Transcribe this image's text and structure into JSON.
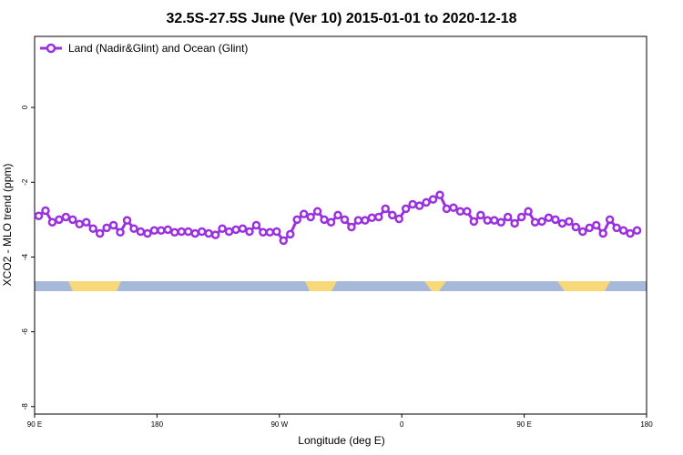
{
  "chart_data": {
    "type": "line",
    "title": "32.5S-27.5S June (Ver 10)   2015-01-01 to 2020-12-18",
    "x_label": "Longitude (deg E)",
    "y_label": "XCO2 - MLO trend (ppm)",
    "xlim": [
      90,
      540
    ],
    "ylim": [
      -8.2,
      1.9
    ],
    "xticks": [
      {
        "value": 90,
        "label": "90 E"
      },
      {
        "value": 180,
        "label": "180"
      },
      {
        "value": 270,
        "label": "90 W"
      },
      {
        "value": 360,
        "label": "0"
      },
      {
        "value": 450,
        "label": "90 E"
      },
      {
        "value": 540,
        "label": "180"
      }
    ],
    "yticks": [
      0,
      -2,
      -4,
      -6,
      -8
    ],
    "legend_position": "top-left",
    "x": [
      93,
      98,
      103,
      108,
      113,
      118,
      123,
      128,
      133,
      138,
      143,
      148,
      153,
      158,
      163,
      168,
      173,
      178,
      183,
      188,
      193,
      198,
      203,
      208,
      213,
      218,
      223,
      228,
      233,
      238,
      243,
      248,
      253,
      258,
      263,
      268,
      273,
      278,
      283,
      288,
      293,
      298,
      303,
      308,
      313,
      318,
      323,
      328,
      333,
      338,
      343,
      348,
      353,
      358,
      363,
      368,
      373,
      378,
      383,
      388,
      393,
      398,
      403,
      408,
      413,
      418,
      423,
      428,
      433,
      438,
      443,
      448,
      453,
      458,
      463,
      468,
      473,
      478,
      483,
      488,
      493,
      498,
      503,
      508,
      513,
      518,
      523,
      528,
      533
    ],
    "series": [
      {
        "name": "Land (Nadir&Glint) and Ocean (Glint)",
        "color": "#9b30e0",
        "values": [
          -2.9,
          -2.76,
          -3.07,
          -3.0,
          -2.93,
          -3.0,
          -3.12,
          -3.07,
          -3.24,
          -3.37,
          -3.22,
          -3.15,
          -3.34,
          -3.02,
          -3.24,
          -3.32,
          -3.37,
          -3.29,
          -3.29,
          -3.27,
          -3.34,
          -3.32,
          -3.32,
          -3.37,
          -3.32,
          -3.37,
          -3.41,
          -3.24,
          -3.32,
          -3.27,
          -3.24,
          -3.32,
          -3.15,
          -3.34,
          -3.34,
          -3.32,
          -3.56,
          -3.39,
          -3.0,
          -2.85,
          -2.93,
          -2.78,
          -3.0,
          -3.07,
          -2.88,
          -3.0,
          -3.2,
          -3.02,
          -3.02,
          -2.95,
          -2.93,
          -2.71,
          -2.88,
          -2.98,
          -2.71,
          -2.59,
          -2.63,
          -2.54,
          -2.46,
          -2.34,
          -2.71,
          -2.68,
          -2.78,
          -2.78,
          -3.05,
          -2.88,
          -3.02,
          -3.02,
          -3.07,
          -2.93,
          -3.1,
          -2.93,
          -2.78,
          -3.07,
          -3.05,
          -2.95,
          -3.0,
          -3.1,
          -3.05,
          -3.2,
          -3.32,
          -3.22,
          -3.15,
          -3.37,
          -3.0,
          -3.22,
          -3.29,
          -3.37,
          -3.29
        ]
      }
    ]
  }
}
